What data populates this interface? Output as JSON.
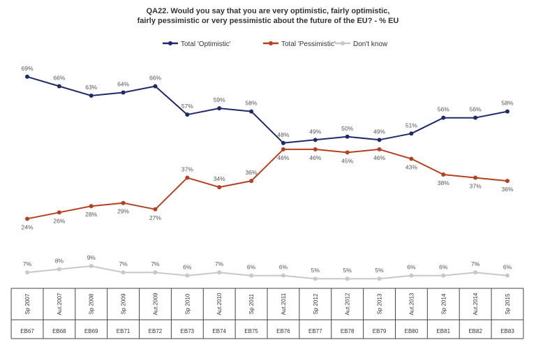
{
  "chart_data": {
    "type": "line",
    "title_lines": [
      "QA22. Would you say that you are very optimistic, fairly optimistic,",
      "fairly pessimistic or very pessimistic about the future of the EU? - % EU"
    ],
    "x_top": [
      "Sp 2007",
      "Aut.2007",
      "Sp 2008",
      "Sp 2009",
      "Aut.2009",
      "Sp 2010",
      "Aut.2010",
      "Sp 2011",
      "Aut.2011",
      "Sp 2012",
      "Aut.2012",
      "Sp 2013",
      "Aut.2013",
      "Sp 2014",
      "Aut.2014",
      "Sp 2015"
    ],
    "x_bottom": [
      "EB67",
      "EB68",
      "EB69",
      "EB71",
      "EB72",
      "EB73",
      "EB74",
      "EB75",
      "EB76",
      "EB77",
      "EB78",
      "EB79",
      "EB80",
      "EB81",
      "EB82",
      "EB83"
    ],
    "series": [
      {
        "name": "Total 'Optimistic'",
        "color": "#1f2a6b",
        "values": [
          69,
          66,
          63,
          64,
          66,
          57,
          59,
          58,
          48,
          49,
          50,
          49,
          51,
          56,
          56,
          58
        ]
      },
      {
        "name": "Total 'Pessimistic'",
        "color": "#b5401f",
        "values": [
          24,
          26,
          28,
          29,
          27,
          37,
          34,
          36,
          46,
          46,
          45,
          46,
          43,
          38,
          37,
          36
        ]
      },
      {
        "name": "Don't know",
        "color": "#c8c8c8",
        "values": [
          7,
          8,
          9,
          7,
          7,
          6,
          7,
          6,
          6,
          5,
          5,
          5,
          6,
          6,
          7,
          6
        ]
      }
    ],
    "value_suffix": "%",
    "legend_position": "top-center",
    "grid": false
  }
}
